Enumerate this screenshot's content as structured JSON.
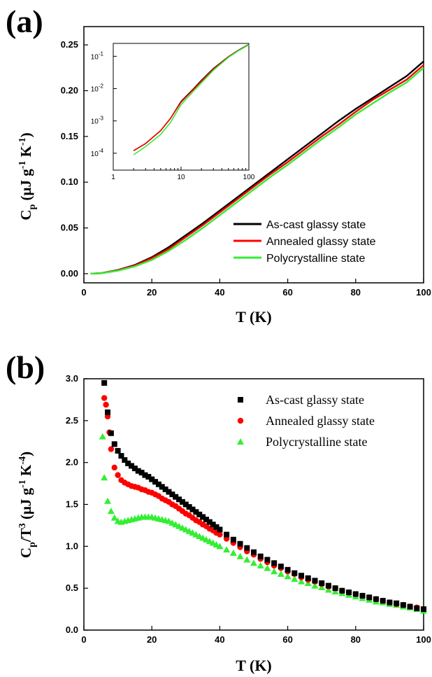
{
  "panels": {
    "a": {
      "label": "(a)"
    },
    "b": {
      "label": "(b)"
    }
  },
  "chart_data": [
    {
      "type": "line",
      "panel": "(a)",
      "xlabel": "T (K)",
      "ylabel": "Cp (μJ g-1 K-1)",
      "xlim": [
        0,
        100
      ],
      "ylim": [
        -0.01,
        0.27
      ],
      "xticks": [
        0,
        20,
        40,
        60,
        80,
        100
      ],
      "yticks": [
        "0.00",
        "0.05",
        "0.10",
        "0.15",
        "0.20",
        "0.25"
      ],
      "legend_position": "bottom-right",
      "x": [
        2,
        5,
        10,
        15,
        20,
        25,
        30,
        35,
        40,
        45,
        50,
        55,
        60,
        65,
        70,
        75,
        80,
        85,
        90,
        95,
        100
      ],
      "series": [
        {
          "name": "As-cast glassy state",
          "color": "#000000",
          "values": [
            0.0001,
            0.0005,
            0.004,
            0.0095,
            0.018,
            0.029,
            0.042,
            0.055,
            0.069,
            0.083,
            0.097,
            0.111,
            0.125,
            0.139,
            0.153,
            0.167,
            0.18,
            0.192,
            0.204,
            0.216,
            0.232
          ]
        },
        {
          "name": "Annealed glassy state",
          "color": "#ff0000",
          "values": [
            0.0001,
            0.0005,
            0.0038,
            0.009,
            0.017,
            0.027,
            0.04,
            0.053,
            0.067,
            0.081,
            0.095,
            0.109,
            0.122,
            0.136,
            0.15,
            0.163,
            0.177,
            0.19,
            0.201,
            0.212,
            0.228
          ]
        },
        {
          "name": "Polycrystalline state",
          "color": "#33ee33",
          "values": [
            0.0001,
            0.0004,
            0.0032,
            0.008,
            0.015,
            0.025,
            0.037,
            0.05,
            0.064,
            0.078,
            0.092,
            0.106,
            0.119,
            0.133,
            0.147,
            0.16,
            0.174,
            0.186,
            0.198,
            0.209,
            0.225
          ]
        }
      ],
      "inset": {
        "type": "line",
        "log_x": true,
        "log_y": true,
        "xlim": [
          1,
          100
        ],
        "ylim": [
          3e-05,
          0.25
        ],
        "xticks": [
          "1",
          "10",
          "100"
        ],
        "yticks": [
          {
            "base": "10",
            "exp": "-4",
            "value": 0.0001
          },
          {
            "base": "10",
            "exp": "-3",
            "value": 0.001
          },
          {
            "base": "10",
            "exp": "-2",
            "value": 0.01
          },
          {
            "base": "10",
            "exp": "-1",
            "value": 0.1
          }
        ],
        "x": [
          2,
          3,
          5,
          7,
          10,
          15,
          20,
          30,
          50,
          70,
          100
        ],
        "series": [
          {
            "name": "As-cast glassy state",
            "color": "#000000",
            "values": [
              0.00012,
              0.0002,
              0.0005,
              0.0012,
              0.004,
              0.0095,
              0.018,
              0.042,
              0.097,
              0.153,
              0.232
            ]
          },
          {
            "name": "Annealed glassy state",
            "color": "#ff0000",
            "values": [
              0.00012,
              0.0002,
              0.0005,
              0.0012,
              0.0038,
              0.009,
              0.017,
              0.04,
              0.095,
              0.15,
              0.228
            ]
          },
          {
            "name": "Polycrystalline state",
            "color": "#33ee33",
            "values": [
              9e-05,
              0.00016,
              0.00038,
              0.0009,
              0.0032,
              0.008,
              0.015,
              0.037,
              0.092,
              0.147,
              0.225
            ]
          }
        ]
      }
    },
    {
      "type": "scatter",
      "panel": "(b)",
      "xlabel": "T (K)",
      "ylabel": "Cp/T3 (μJ g-1 K-4)",
      "xlim": [
        0,
        100
      ],
      "ylim": [
        0,
        3.0
      ],
      "xticks": [
        0,
        20,
        40,
        60,
        80,
        100
      ],
      "yticks": [
        "0.0",
        "0.5",
        "1.0",
        "1.5",
        "2.0",
        "2.5",
        "3.0"
      ],
      "legend_position": "top-right",
      "series": [
        {
          "name": "As-cast glassy state",
          "color": "#000000",
          "marker": "square",
          "x": [
            6,
            7,
            8,
            9,
            10,
            11,
            12,
            13,
            14,
            15,
            16,
            17,
            18,
            19,
            20,
            21,
            22,
            23,
            24,
            25,
            26,
            27,
            28,
            29,
            30,
            31,
            32,
            33,
            34,
            35,
            36,
            37,
            38,
            39,
            40,
            42,
            44,
            46,
            48,
            50,
            52,
            54,
            56,
            58,
            60,
            62,
            64,
            66,
            68,
            70,
            72,
            74,
            76,
            78,
            80,
            82,
            84,
            86,
            88,
            90,
            92,
            94,
            96,
            98,
            100
          ],
          "y": [
            2.95,
            2.6,
            2.35,
            2.22,
            2.14,
            2.08,
            2.03,
            1.99,
            1.96,
            1.93,
            1.9,
            1.88,
            1.85,
            1.83,
            1.8,
            1.77,
            1.74,
            1.71,
            1.68,
            1.65,
            1.62,
            1.59,
            1.56,
            1.53,
            1.5,
            1.47,
            1.44,
            1.41,
            1.38,
            1.35,
            1.32,
            1.29,
            1.26,
            1.23,
            1.2,
            1.14,
            1.08,
            1.03,
            0.98,
            0.93,
            0.88,
            0.84,
            0.8,
            0.76,
            0.72,
            0.68,
            0.65,
            0.62,
            0.59,
            0.56,
            0.53,
            0.5,
            0.47,
            0.45,
            0.43,
            0.41,
            0.39,
            0.37,
            0.35,
            0.33,
            0.32,
            0.3,
            0.28,
            0.26,
            0.25
          ]
        },
        {
          "name": "Annealed glassy state",
          "color": "#ff0000",
          "marker": "circle",
          "x": [
            6,
            6.5,
            7,
            7.5,
            8,
            9,
            10,
            11,
            12,
            13,
            14,
            15,
            16,
            17,
            18,
            19,
            20,
            21,
            22,
            23,
            24,
            25,
            26,
            27,
            28,
            29,
            30,
            31,
            32,
            33,
            34,
            35,
            36,
            37,
            38,
            39,
            40,
            42,
            44,
            46,
            48,
            50,
            52,
            54,
            56,
            58,
            60,
            62,
            64,
            66,
            68,
            70,
            72,
            74,
            76,
            78,
            80,
            82,
            84,
            86,
            88,
            90,
            92,
            94,
            96,
            98,
            100
          ],
          "y": [
            2.77,
            2.69,
            2.55,
            2.36,
            2.16,
            1.94,
            1.85,
            1.79,
            1.76,
            1.74,
            1.72,
            1.71,
            1.7,
            1.68,
            1.67,
            1.65,
            1.64,
            1.62,
            1.6,
            1.57,
            1.55,
            1.53,
            1.5,
            1.48,
            1.45,
            1.42,
            1.39,
            1.37,
            1.34,
            1.31,
            1.29,
            1.26,
            1.24,
            1.21,
            1.19,
            1.16,
            1.14,
            1.09,
            1.04,
            0.99,
            0.94,
            0.9,
            0.85,
            0.81,
            0.77,
            0.74,
            0.7,
            0.67,
            0.63,
            0.6,
            0.58,
            0.55,
            0.52,
            0.5,
            0.47,
            0.45,
            0.43,
            0.41,
            0.39,
            0.37,
            0.35,
            0.33,
            0.31,
            0.3,
            0.28,
            0.27,
            0.25
          ]
        },
        {
          "name": "Polycrystalline state",
          "color": "#33ee33",
          "marker": "triangle",
          "x": [
            5.5,
            6,
            7,
            8,
            9,
            10,
            11,
            12,
            13,
            14,
            15,
            16,
            17,
            18,
            19,
            20,
            21,
            22,
            23,
            24,
            25,
            26,
            27,
            28,
            29,
            30,
            31,
            32,
            33,
            34,
            35,
            36,
            37,
            38,
            39,
            40,
            42,
            44,
            46,
            48,
            50,
            52,
            54,
            56,
            58,
            60,
            62,
            64,
            66,
            68,
            70,
            72,
            74,
            76,
            78,
            80,
            82,
            84,
            86,
            88,
            90,
            92,
            94,
            96,
            98,
            100
          ],
          "y": [
            2.31,
            1.82,
            1.54,
            1.42,
            1.34,
            1.3,
            1.29,
            1.3,
            1.31,
            1.32,
            1.33,
            1.34,
            1.35,
            1.35,
            1.35,
            1.35,
            1.34,
            1.33,
            1.32,
            1.31,
            1.3,
            1.28,
            1.26,
            1.24,
            1.22,
            1.2,
            1.18,
            1.16,
            1.14,
            1.12,
            1.1,
            1.08,
            1.06,
            1.04,
            1.02,
            1.0,
            0.96,
            0.92,
            0.88,
            0.84,
            0.8,
            0.77,
            0.74,
            0.7,
            0.67,
            0.64,
            0.61,
            0.58,
            0.56,
            0.53,
            0.51,
            0.48,
            0.46,
            0.44,
            0.42,
            0.4,
            0.38,
            0.36,
            0.34,
            0.33,
            0.31,
            0.3,
            0.28,
            0.27,
            0.25,
            0.23
          ]
        }
      ]
    }
  ]
}
